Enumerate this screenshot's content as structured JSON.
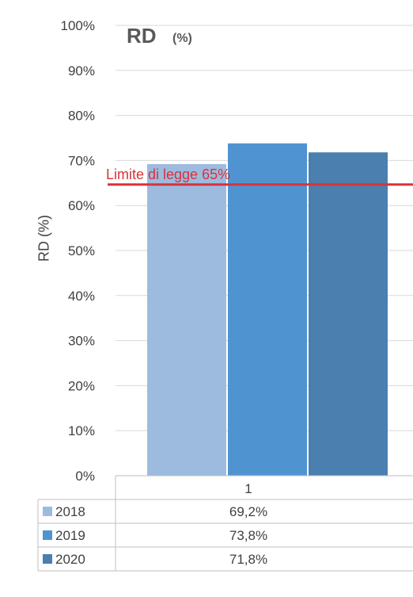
{
  "chart_data": {
    "type": "bar",
    "title": "RD",
    "subtitle": "(%)",
    "ylabel": "RD (%)",
    "xlabel": "",
    "categories": [
      "1"
    ],
    "ylim": [
      0,
      100
    ],
    "yticks": [
      "0%",
      "10%",
      "20%",
      "30%",
      "40%",
      "50%",
      "60%",
      "70%",
      "80%",
      "90%",
      "100%"
    ],
    "grid": true,
    "series": [
      {
        "name": "2018",
        "values": [
          69.2
        ],
        "label": "69,2%",
        "color": "#9dbbdf"
      },
      {
        "name": "2019",
        "values": [
          73.8
        ],
        "label": "73,8%",
        "color": "#4f94d1"
      },
      {
        "name": "2020",
        "values": [
          71.8
        ],
        "label": "71,8%",
        "color": "#4a7fb0"
      }
    ],
    "reference_line": {
      "value": 65,
      "label": "Limite di legge 65%",
      "color": "#d9323a"
    }
  }
}
